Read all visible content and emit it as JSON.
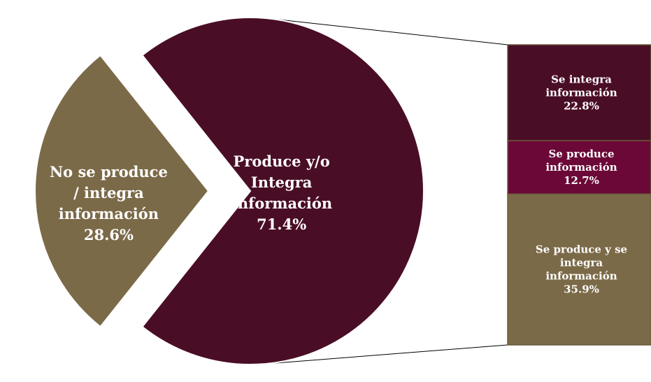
{
  "chart_data": {
    "type": "pie",
    "subtype": "bar-of-pie",
    "slices": [
      {
        "name": "No se produce / integra información",
        "lines": [
          "No se produce",
          "/ integra",
          "información"
        ],
        "value": 28.6,
        "label": "28.6%",
        "color": "#7b6a48",
        "exploded": true
      },
      {
        "name": "Produce y/o Integra Información",
        "lines": [
          "Produce y/o",
          "Integra",
          "Información"
        ],
        "value": 71.4,
        "label": "71.4%",
        "color": "#4a0d26",
        "exploded": false
      }
    ],
    "breakdown_of": "Produce y/o Integra Información",
    "bar_segments": [
      {
        "name": "Se integra información",
        "lines": [
          "Se integra",
          "información"
        ],
        "value": 22.8,
        "label": "22.8%",
        "color": "#4a0d26"
      },
      {
        "name": "Se produce información",
        "lines": [
          "Se produce",
          "información"
        ],
        "value": 12.7,
        "label": "12.7%",
        "color": "#6b0837"
      },
      {
        "name": "Se produce y se integra información",
        "lines": [
          "Se produce y se",
          "integra",
          "información"
        ],
        "value": 35.9,
        "label": "35.9%",
        "color": "#7b6a48"
      }
    ],
    "bar_border_color": "#6b5a3c",
    "connector_color": "#000000"
  }
}
